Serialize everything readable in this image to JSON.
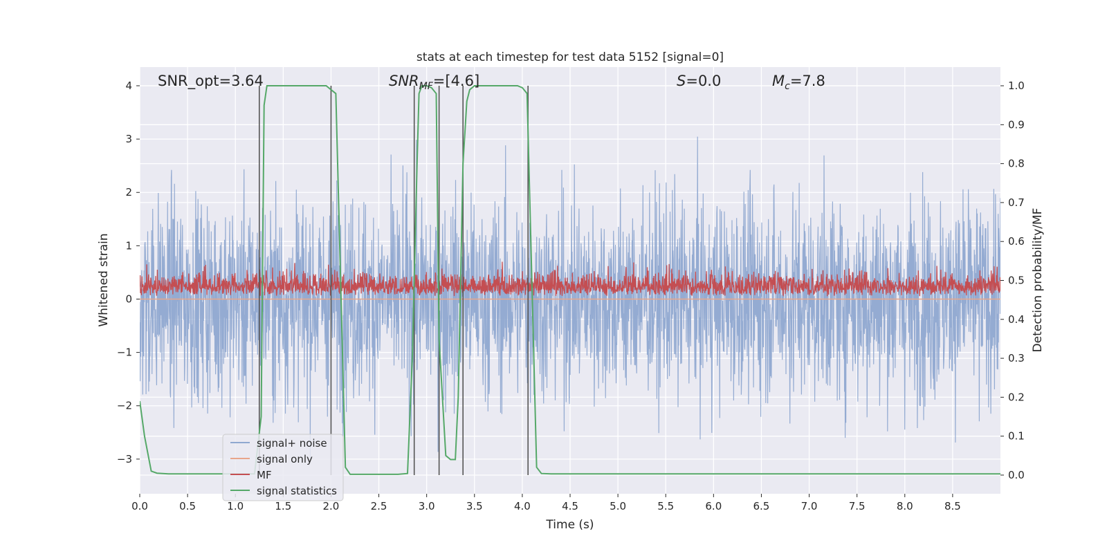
{
  "chart_data": {
    "type": "line",
    "title": "stats at each timestep for test data 5152 [signal=0]",
    "xlabel": "Time (s)",
    "ylabel": "Whitened strain",
    "y2label": "Detection probability/MF",
    "xlim": [
      0.0,
      9.0
    ],
    "ylim": [
      -3.65,
      4.35
    ],
    "y2lim": [
      -0.048,
      1.048
    ],
    "xticks": [
      "0.0",
      "0.5",
      "1.0",
      "1.5",
      "2.0",
      "2.5",
      "3.0",
      "3.5",
      "4.0",
      "4.5",
      "5.0",
      "5.5",
      "6.0",
      "6.5",
      "7.0",
      "7.5",
      "8.0",
      "8.5"
    ],
    "yticks": [
      "4",
      "3",
      "2",
      "1",
      "0",
      "−1",
      "−2",
      "−3"
    ],
    "y2ticks": [
      "1.0",
      "0.9",
      "0.8",
      "0.7",
      "0.6",
      "0.5",
      "0.4",
      "0.3",
      "0.2",
      "0.1",
      "0.0"
    ],
    "grid": true,
    "legend_position": "lower-left",
    "annotations": {
      "snr_opt": "SNR_opt=3.64",
      "snr_mf_prefix": "SNR",
      "snr_mf_sub": "MF",
      "snr_mf_value": "=[4.6]",
      "s_label": "S",
      "s_value": "=0.0",
      "mc_label": "M",
      "mc_sub": "c",
      "mc_value": "=7.8"
    },
    "series": [
      {
        "name": "signal+ noise",
        "color": "#8fa8d0",
        "axis": "left",
        "description_stat": {
          "mean": 0.0,
          "typical_abs_max": 2.5,
          "peak": 3.8,
          "trough": -3.25
        }
      },
      {
        "name": "signal only",
        "color": "#e8a58a",
        "axis": "left",
        "values_constant": 0.0
      },
      {
        "name": "MF",
        "color": "#c44e52",
        "axis": "left",
        "description_stat": {
          "baseline": 0.02,
          "typical_max": 0.6,
          "peak": 1.0
        }
      },
      {
        "name": "signal statistics",
        "color": "#55a868",
        "axis": "right",
        "x": [
          0.0,
          0.05,
          0.12,
          0.18,
          0.3,
          0.6,
          1.0,
          1.2,
          1.27,
          1.3,
          1.33,
          1.4,
          1.6,
          1.8,
          1.9,
          1.95,
          2.0,
          2.05,
          2.1,
          2.15,
          2.2,
          2.3,
          2.5,
          2.7,
          2.8,
          2.85,
          2.9,
          2.92,
          2.95,
          3.0,
          3.05,
          3.1,
          3.13,
          3.2,
          3.25,
          3.3,
          3.33,
          3.38,
          3.42,
          3.45,
          3.5,
          3.6,
          3.8,
          3.95,
          4.0,
          4.05,
          4.1,
          4.15,
          4.2,
          4.3,
          5.0,
          6.0,
          7.0,
          8.0,
          9.0
        ],
        "y": [
          0.19,
          0.1,
          0.01,
          0.005,
          0.003,
          0.003,
          0.003,
          0.003,
          0.15,
          0.95,
          1.0,
          1.0,
          1.0,
          1.0,
          1.0,
          1.0,
          0.99,
          0.98,
          0.5,
          0.02,
          0.002,
          0.002,
          0.002,
          0.002,
          0.004,
          0.3,
          0.8,
          0.98,
          1.0,
          1.0,
          0.995,
          0.98,
          0.35,
          0.05,
          0.04,
          0.04,
          0.2,
          0.8,
          0.96,
          0.99,
          1.0,
          1.0,
          1.0,
          1.0,
          0.995,
          0.98,
          0.5,
          0.02,
          0.004,
          0.003,
          0.003,
          0.003,
          0.003,
          0.003,
          0.003
        ]
      },
      {
        "name": "segment markers",
        "color": "#555555",
        "axis": "left",
        "x_positions": [
          1.25,
          2.0,
          2.87,
          3.13,
          3.38,
          4.06
        ]
      }
    ]
  }
}
